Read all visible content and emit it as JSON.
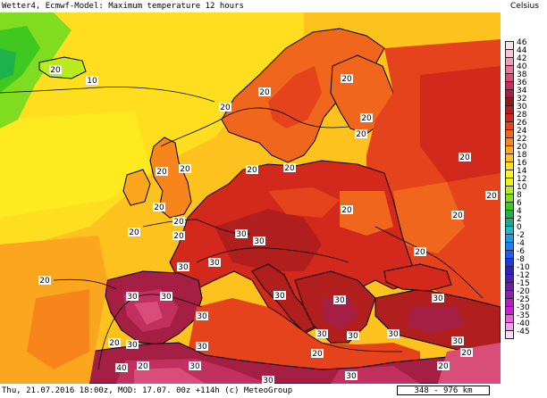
{
  "header": {
    "title": "Wetter4, Ecmwf-Model: Maximum temperature 12 hours"
  },
  "footer": {
    "info": "Thu, 21.07.2016 18:00z, MOD: 17.07. 00z +114h (c) MeteoGroup",
    "scale": "348 - 976 km"
  },
  "legend": {
    "title": "Celsius",
    "entries": [
      {
        "label": "46",
        "color": "#f6e1ea"
      },
      {
        "label": "44",
        "color": "#f3c6d4"
      },
      {
        "label": "42",
        "color": "#ee9fb8"
      },
      {
        "label": "40",
        "color": "#e67597"
      },
      {
        "label": "38",
        "color": "#d94d7a"
      },
      {
        "label": "36",
        "color": "#c23060"
      },
      {
        "label": "34",
        "color": "#a51f45"
      },
      {
        "label": "32",
        "color": "#8e1a1a"
      },
      {
        "label": "30",
        "color": "#b11e1e"
      },
      {
        "label": "28",
        "color": "#d3291c"
      },
      {
        "label": "26",
        "color": "#e5431c"
      },
      {
        "label": "24",
        "color": "#f0661c"
      },
      {
        "label": "22",
        "color": "#f7851c"
      },
      {
        "label": "20",
        "color": "#fca51f"
      },
      {
        "label": "18",
        "color": "#fec21f"
      },
      {
        "label": "16",
        "color": "#fede1f"
      },
      {
        "label": "14",
        "color": "#fef21f"
      },
      {
        "label": "12",
        "color": "#e6f51f"
      },
      {
        "label": "10",
        "color": "#b8ec1f"
      },
      {
        "label": "8",
        "color": "#7fdc1f"
      },
      {
        "label": "6",
        "color": "#3fc81f"
      },
      {
        "label": "4",
        "color": "#1fb24a"
      },
      {
        "label": "2",
        "color": "#1fa88a"
      },
      {
        "label": "0",
        "color": "#1fb8c8"
      },
      {
        "label": "-2",
        "color": "#1f9ce6"
      },
      {
        "label": "-4",
        "color": "#1f7ef2"
      },
      {
        "label": "-6",
        "color": "#1f5af2"
      },
      {
        "label": "-8",
        "color": "#1f36e0"
      },
      {
        "label": "-10",
        "color": "#2a1fc8"
      },
      {
        "label": "-12",
        "color": "#4a1fb0"
      },
      {
        "label": "-15",
        "color": "#6a1fa0"
      },
      {
        "label": "-20",
        "color": "#8a1fb0"
      },
      {
        "label": "-25",
        "color": "#b01fc0"
      },
      {
        "label": "-30",
        "color": "#d01fd0"
      },
      {
        "label": "-35",
        "color": "#e860e0"
      },
      {
        "label": "-40",
        "color": "#f2a0ee"
      },
      {
        "label": "-45",
        "color": "#fad8f6"
      }
    ]
  },
  "map": {
    "isotherm_labels": [
      "10",
      "20",
      "20",
      "20",
      "20",
      "20",
      "20",
      "20",
      "20",
      "20",
      "20",
      "20",
      "20",
      "20",
      "20",
      "20",
      "20",
      "20",
      "20",
      "20",
      "30",
      "30",
      "30",
      "30",
      "30",
      "30",
      "30",
      "30",
      "30",
      "30",
      "30",
      "30",
      "30",
      "30",
      "30",
      "30",
      "30",
      "20",
      "40",
      "20",
      "30",
      "30",
      "20",
      "20",
      "20",
      "20"
    ]
  }
}
